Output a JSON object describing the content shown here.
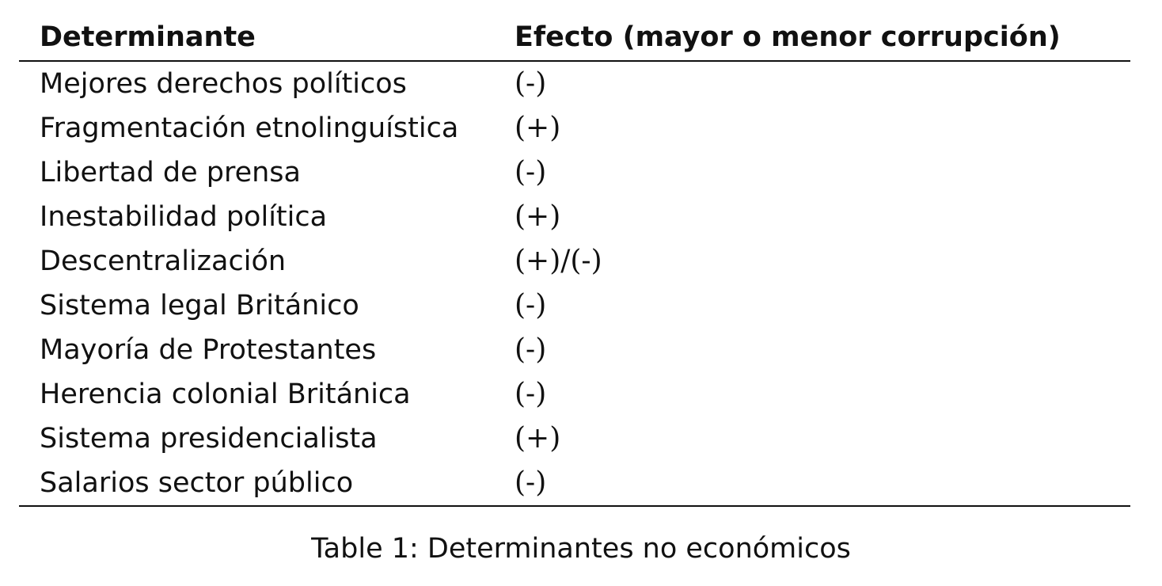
{
  "table": {
    "headers": {
      "determinant": "Determinante",
      "effect": "Efecto (mayor o menor corrupción)"
    },
    "rows": [
      {
        "determinant": "Mejores derechos políticos",
        "effect": "(-)"
      },
      {
        "determinant": "Fragmentación etnolinguística",
        "effect": "(+)"
      },
      {
        "determinant": "Libertad de prensa",
        "effect": "(-)"
      },
      {
        "determinant": "Inestabilidad política",
        "effect": "(+)"
      },
      {
        "determinant": "Descentralización",
        "effect": "(+)/(-)"
      },
      {
        "determinant": "Sistema legal Británico",
        "effect": "(-)"
      },
      {
        "determinant": "Mayoría de Protestantes",
        "effect": "(-)"
      },
      {
        "determinant": "Herencia colonial Británica",
        "effect": "(-)"
      },
      {
        "determinant": "Sistema presidencialista",
        "effect": "(+)"
      },
      {
        "determinant": "Salarios sector público",
        "effect": "(-)"
      }
    ]
  },
  "caption": "Table 1: Determinantes no económicos"
}
